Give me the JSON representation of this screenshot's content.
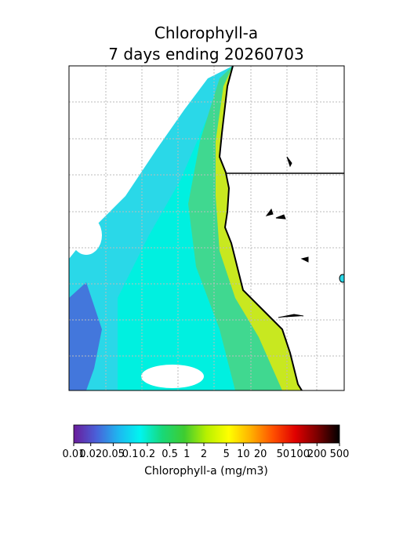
{
  "title": [
    "Chlorophyll-a",
    "7 days ending 20260703"
  ],
  "colorbar": {
    "label": "Chlorophyll-a (mg/m3)",
    "lim": [
      0.01,
      500
    ],
    "log": true,
    "ticks": [
      0.01,
      0.02,
      0.05,
      0.1,
      0.2,
      0.5,
      1,
      2,
      5,
      10,
      20,
      50,
      100,
      200,
      500
    ],
    "colors": [
      "#6a1b9a",
      "#4a5fd8",
      "#1fb5f0",
      "#00f5f0",
      "#18d878",
      "#3fcc30",
      "#b8f000",
      "#ffff00",
      "#ffb000",
      "#ff5000",
      "#e00000",
      "#7a0000",
      "#000000"
    ]
  }
}
